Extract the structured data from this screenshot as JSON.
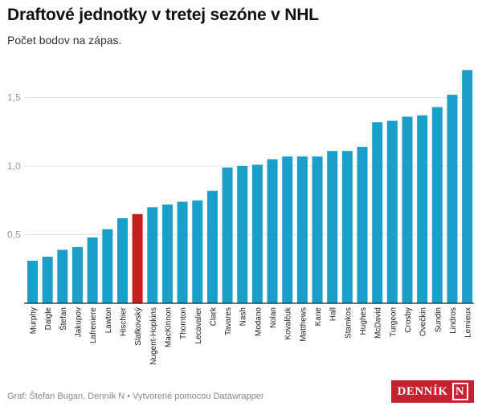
{
  "chart_data": {
    "type": "bar",
    "title": "Draftové jednotky v tretej sezóne v NHL",
    "subtitle": "Počet bodov na zápas.",
    "categories": [
      "Murphy",
      "Daigle",
      "Štefan",
      "Jakupov",
      "Lafreniere",
      "Lawton",
      "Hischier",
      "Slafkovský",
      "Nugent-Hopkins",
      "MacKinnon",
      "Thornton",
      "Lecavalier",
      "Clark",
      "Tavares",
      "Nash",
      "Modano",
      "Nolan",
      "Kovalčuk",
      "Matthews",
      "Kane",
      "Hall",
      "Stamkos",
      "Hughes",
      "McDavid",
      "Turgeon",
      "Crosby",
      "Ovečkin",
      "Sundin",
      "Lindros",
      "Lemieux"
    ],
    "values": [
      0.31,
      0.34,
      0.39,
      0.41,
      0.48,
      0.54,
      0.62,
      0.65,
      0.7,
      0.72,
      0.74,
      0.75,
      0.82,
      0.99,
      1.0,
      1.01,
      1.05,
      1.07,
      1.07,
      1.07,
      1.11,
      1.11,
      1.14,
      1.32,
      1.33,
      1.36,
      1.37,
      1.43,
      1.52,
      1.7
    ],
    "highlight": "Slafkovský",
    "ylim": [
      0,
      1.7
    ],
    "yticks": [
      {
        "v": 0.5,
        "label": "0,5"
      },
      {
        "v": 1.0,
        "label": "1,0"
      },
      {
        "v": 1.5,
        "label": "1,5"
      }
    ],
    "grid": true,
    "colors": {
      "bar": "#1a9fcb",
      "highlight": "#c71e1e"
    },
    "xlabel": "",
    "ylabel": ""
  },
  "footer": "Graf: Štefan Bugan, Denník N • Vytvorené pomocou Datawrapper",
  "logo": {
    "text": "DENNÍK",
    "mark": "N"
  }
}
